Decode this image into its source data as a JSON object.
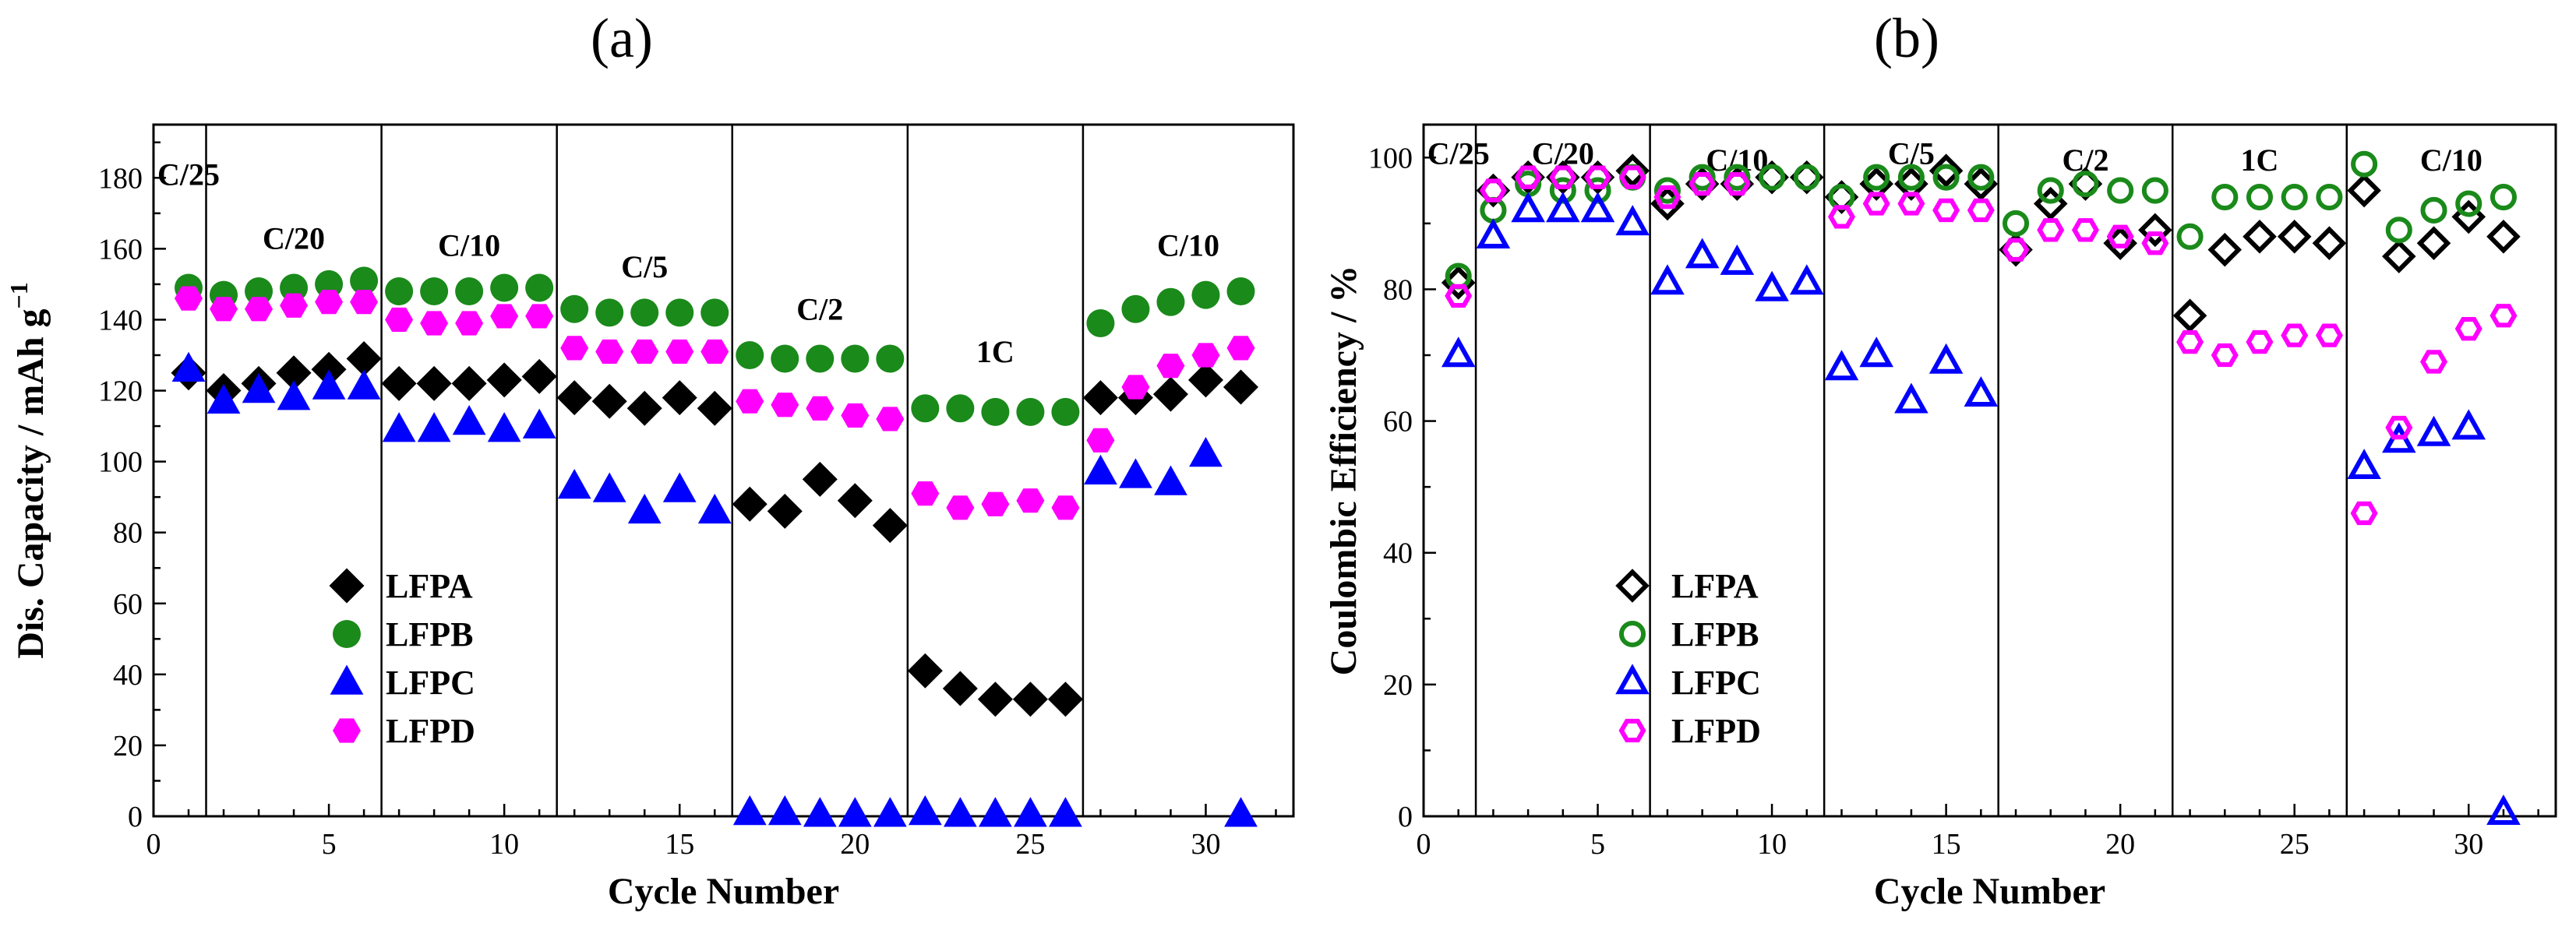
{
  "colors": {
    "LFPA": "#000000",
    "LFPB": "#1a8a1a",
    "LFPC": "#0000ff",
    "LFPD": "#ff00ff"
  },
  "chart_data": [
    {
      "panel": "(a)",
      "type": "scatter",
      "title": "",
      "xlabel": "Cycle Number",
      "ylabel": "Dis. Capacity / mAh g",
      "ylabel_superscript": "−1",
      "xlim": [
        0,
        32.5
      ],
      "ylim": [
        0,
        195
      ],
      "xticks": [
        0,
        5,
        10,
        15,
        20,
        25,
        30
      ],
      "yticks": [
        0,
        20,
        40,
        60,
        80,
        100,
        120,
        140,
        160,
        180
      ],
      "dividers": [
        1.5,
        6.5,
        11.5,
        16.5,
        21.5,
        26.5
      ],
      "regions": [
        {
          "label": "C/25",
          "x": 1,
          "y": 178
        },
        {
          "label": "C/20",
          "x": 4,
          "y": 160
        },
        {
          "label": "C/10",
          "x": 9,
          "y": 158
        },
        {
          "label": "C/5",
          "x": 14,
          "y": 152
        },
        {
          "label": "C/2",
          "x": 19,
          "y": 140
        },
        {
          "label": "1C",
          "x": 24,
          "y": 128
        },
        {
          "label": "C/10",
          "x": 29.5,
          "y": 158
        }
      ],
      "legend_position": "lower-left",
      "series": [
        {
          "name": "LFPA",
          "marker": "diamond",
          "filled": true,
          "x": [
            1,
            2,
            3,
            4,
            5,
            6,
            7,
            8,
            9,
            10,
            11,
            12,
            13,
            14,
            15,
            16,
            17,
            18,
            19,
            20,
            21,
            22,
            23,
            24,
            25,
            26,
            27,
            28,
            29,
            30,
            31
          ],
          "y": [
            125,
            120,
            122,
            125,
            126,
            129,
            122,
            122,
            122,
            123,
            124,
            118,
            117,
            115,
            118,
            115,
            88,
            86,
            95,
            89,
            82,
            41,
            36,
            33,
            33,
            33,
            118,
            118,
            119,
            123,
            121
          ]
        },
        {
          "name": "LFPB",
          "marker": "circle",
          "filled": true,
          "x": [
            1,
            2,
            3,
            4,
            5,
            6,
            7,
            8,
            9,
            10,
            11,
            12,
            13,
            14,
            15,
            16,
            17,
            18,
            19,
            20,
            21,
            22,
            23,
            24,
            25,
            26,
            27,
            28,
            29,
            30,
            31
          ],
          "y": [
            149,
            147,
            148,
            149,
            150,
            151,
            148,
            148,
            148,
            149,
            149,
            143,
            142,
            142,
            142,
            142,
            130,
            129,
            129,
            129,
            129,
            115,
            115,
            114,
            114,
            114,
            139,
            143,
            145,
            147,
            148
          ]
        },
        {
          "name": "LFPC",
          "marker": "triangle",
          "filled": true,
          "x": [
            1,
            2,
            3,
            4,
            5,
            6,
            7,
            8,
            9,
            10,
            11,
            12,
            13,
            14,
            15,
            16,
            17,
            18,
            19,
            20,
            21,
            22,
            23,
            24,
            25,
            26,
            27,
            28,
            29,
            30,
            31
          ],
          "y": [
            126,
            117,
            120,
            118,
            121,
            121,
            109,
            109,
            111,
            109,
            110,
            93,
            92,
            86,
            92,
            86,
            1,
            1,
            0.5,
            0.5,
            0.5,
            1,
            0.5,
            0.5,
            0.5,
            0.5,
            97,
            96,
            94,
            102,
            0.5
          ]
        },
        {
          "name": "LFPD",
          "marker": "hexagon",
          "filled": true,
          "x": [
            1,
            2,
            3,
            4,
            5,
            6,
            7,
            8,
            9,
            10,
            11,
            12,
            13,
            14,
            15,
            16,
            17,
            18,
            19,
            20,
            21,
            22,
            23,
            24,
            25,
            26,
            27,
            28,
            29,
            30,
            31
          ],
          "y": [
            146,
            143,
            143,
            144,
            145,
            145,
            140,
            139,
            139,
            141,
            141,
            132,
            131,
            131,
            131,
            131,
            117,
            116,
            115,
            113,
            112,
            91,
            87,
            88,
            89,
            87,
            106,
            121,
            127,
            130,
            132
          ]
        }
      ]
    },
    {
      "panel": "(b)",
      "type": "scatter",
      "title": "",
      "xlabel": "Cycle Number",
      "ylabel": "Coulombic Efficiency / %",
      "xlim": [
        0,
        32.5
      ],
      "ylim": [
        0,
        105
      ],
      "xticks": [
        0,
        5,
        10,
        15,
        20,
        25,
        30
      ],
      "yticks": [
        0,
        20,
        40,
        60,
        80,
        100
      ],
      "dividers": [
        1.5,
        6.5,
        11.5,
        16.5,
        21.5,
        26.5
      ],
      "regions": [
        {
          "label": "C/25",
          "x": 1,
          "y": 99
        },
        {
          "label": "C/20",
          "x": 4,
          "y": 99
        },
        {
          "label": "C/10",
          "x": 9,
          "y": 98
        },
        {
          "label": "C/5",
          "x": 14,
          "y": 99
        },
        {
          "label": "C/2",
          "x": 19,
          "y": 98
        },
        {
          "label": "1C",
          "x": 24,
          "y": 98
        },
        {
          "label": "C/10",
          "x": 29.5,
          "y": 98
        }
      ],
      "legend_position": "lower-left",
      "series": [
        {
          "name": "LFPA",
          "marker": "diamond",
          "filled": false,
          "x": [
            1,
            2,
            3,
            4,
            5,
            6,
            7,
            8,
            9,
            10,
            11,
            12,
            13,
            14,
            15,
            16,
            17,
            18,
            19,
            20,
            21,
            22,
            23,
            24,
            25,
            26,
            27,
            28,
            29,
            30,
            31
          ],
          "y": [
            81,
            95,
            97,
            97,
            97,
            98,
            93,
            96,
            96,
            97,
            97,
            94,
            96,
            96,
            98,
            96,
            86,
            93,
            96,
            87,
            89,
            76,
            86,
            88,
            88,
            87,
            95,
            85,
            87,
            91,
            88
          ]
        },
        {
          "name": "LFPB",
          "marker": "circle",
          "filled": false,
          "x": [
            1,
            2,
            3,
            4,
            5,
            6,
            7,
            8,
            9,
            10,
            11,
            12,
            13,
            14,
            15,
            16,
            17,
            18,
            19,
            20,
            21,
            22,
            23,
            24,
            25,
            26,
            27,
            28,
            29,
            30,
            31
          ],
          "y": [
            82,
            92,
            96,
            95,
            95,
            97,
            95,
            97,
            97,
            97,
            97,
            94,
            97,
            97,
            97,
            97,
            90,
            95,
            96,
            95,
            95,
            88,
            94,
            94,
            94,
            94,
            99,
            89,
            92,
            93,
            94
          ]
        },
        {
          "name": "LFPC",
          "marker": "triangle",
          "filled": false,
          "x": [
            1,
            2,
            3,
            4,
            5,
            6,
            7,
            8,
            9,
            10,
            11,
            12,
            13,
            14,
            15,
            16,
            17,
            18,
            19,
            20,
            21,
            22,
            23,
            24,
            25,
            26,
            27,
            28,
            29,
            30,
            31
          ],
          "y": [
            70,
            88,
            92,
            92,
            92,
            90,
            81,
            85,
            84,
            80,
            81,
            68,
            70,
            63,
            69,
            64,
            null,
            null,
            null,
            null,
            null,
            null,
            null,
            null,
            null,
            null,
            53,
            57,
            58,
            59,
            0.5
          ]
        },
        {
          "name": "LFPD",
          "marker": "hexagon",
          "filled": false,
          "x": [
            1,
            2,
            3,
            4,
            5,
            6,
            7,
            8,
            9,
            10,
            11,
            12,
            13,
            14,
            15,
            16,
            17,
            18,
            19,
            20,
            21,
            22,
            23,
            24,
            25,
            26,
            27,
            28,
            29,
            30,
            31
          ],
          "y": [
            79,
            95,
            97,
            97,
            97,
            97,
            94,
            96,
            96,
            null,
            null,
            91,
            93,
            93,
            92,
            92,
            86,
            89,
            89,
            88,
            87,
            72,
            70,
            72,
            73,
            73,
            46,
            59,
            69,
            74,
            76
          ]
        }
      ]
    }
  ]
}
